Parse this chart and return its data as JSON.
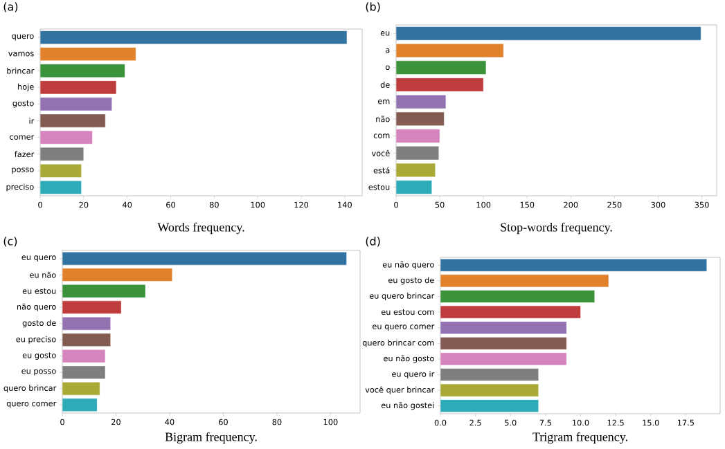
{
  "chart_data": [
    {
      "type": "bar",
      "orientation": "horizontal",
      "xlabel": "Words frequency.",
      "annotations": [
        "(a)"
      ],
      "categories": [
        "quero",
        "vamos",
        "brincar",
        "hoje",
        "gosto",
        "ir",
        "comer",
        "fazer",
        "posso",
        "preciso"
      ],
      "values": [
        141,
        44,
        39,
        35,
        33,
        30,
        24,
        20,
        19,
        19
      ],
      "colors": [
        "#3274a1",
        "#e1812c",
        "#3a923a",
        "#c03d3e",
        "#9372b2",
        "#845b53",
        "#d684bd",
        "#7f7f7f",
        "#a9aa35",
        "#2eabb8"
      ],
      "xlim": [
        0,
        148
      ],
      "xticks": [
        0,
        20,
        40,
        60,
        80,
        100,
        120,
        140
      ]
    },
    {
      "type": "bar",
      "orientation": "horizontal",
      "xlabel": "Stop-words frequency.",
      "annotations": [
        "(b)"
      ],
      "categories": [
        "eu",
        "a",
        "o",
        "de",
        "em",
        "não",
        "com",
        "você",
        "está",
        "estou"
      ],
      "values": [
        349,
        123,
        103,
        100,
        57,
        55,
        50,
        49,
        45,
        41
      ],
      "colors": [
        "#3274a1",
        "#e1812c",
        "#3a923a",
        "#c03d3e",
        "#9372b2",
        "#845b53",
        "#d684bd",
        "#7f7f7f",
        "#a9aa35",
        "#2eabb8"
      ],
      "xlim": [
        0,
        367
      ],
      "xticks": [
        0,
        50,
        100,
        150,
        200,
        250,
        300,
        350
      ]
    },
    {
      "type": "bar",
      "orientation": "horizontal",
      "xlabel": "Bigram frequency.",
      "annotations": [
        "(c)"
      ],
      "categories": [
        "eu quero",
        "eu não",
        "eu estou",
        "não quero",
        "gosto de",
        "eu preciso",
        "eu gosto",
        "eu posso",
        "quero brincar",
        "quero comer"
      ],
      "values": [
        106,
        41,
        31,
        22,
        18,
        18,
        16,
        16,
        14,
        13
      ],
      "colors": [
        "#3274a1",
        "#e1812c",
        "#3a923a",
        "#c03d3e",
        "#9372b2",
        "#845b53",
        "#d684bd",
        "#7f7f7f",
        "#a9aa35",
        "#2eabb8"
      ],
      "xlim": [
        0,
        111
      ],
      "xticks": [
        0,
        20,
        40,
        60,
        80,
        100
      ]
    },
    {
      "type": "bar",
      "orientation": "horizontal",
      "xlabel": "Trigram frequency.",
      "annotations": [
        "(d)"
      ],
      "categories": [
        "eu não quero",
        "eu gosto de",
        "eu quero brincar",
        "eu estou com",
        "eu quero comer",
        "quero brincar com",
        "eu não gosto",
        "eu quero ir",
        "você quer brincar",
        "eu não gostei"
      ],
      "values": [
        19,
        12,
        11,
        10,
        9,
        9,
        9,
        7,
        7,
        7
      ],
      "colors": [
        "#3274a1",
        "#e1812c",
        "#3a923a",
        "#c03d3e",
        "#9372b2",
        "#845b53",
        "#d684bd",
        "#7f7f7f",
        "#a9aa35",
        "#2eabb8"
      ],
      "xlim": [
        0,
        19.95
      ],
      "xticks": [
        {
          "value": 0,
          "label": "0.0"
        },
        {
          "value": 2.5,
          "label": "2.5"
        },
        {
          "value": 5,
          "label": "5.0"
        },
        {
          "value": 7.5,
          "label": "7.5"
        },
        {
          "value": 10,
          "label": "10.0"
        },
        {
          "value": 12.5,
          "label": "12.5"
        },
        {
          "value": 15,
          "label": "15.0"
        },
        {
          "value": 17.5,
          "label": "17.5"
        }
      ]
    }
  ]
}
